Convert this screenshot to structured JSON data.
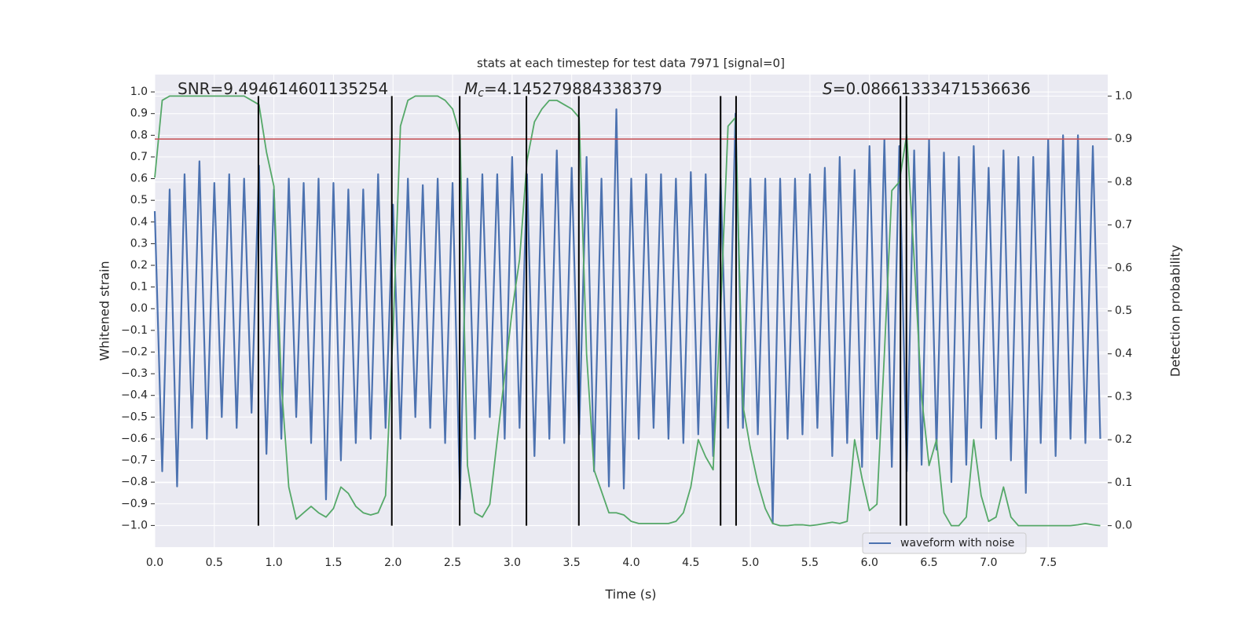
{
  "chart_data": {
    "type": "dual_line",
    "title": "stats at each timestep for test data 7971 [signal=0]",
    "xlabel": "Time (s)",
    "ylabel": "Whitened strain",
    "y2label": "Detection probability",
    "annotations": [
      {
        "text": "SNR=9.494614601135254"
      },
      {
        "symbol": "M",
        "subscript": "c",
        "text": "=4.145279884338379"
      },
      {
        "symbol": "S",
        "text": "=0.08661333471536636"
      }
    ],
    "xlim": [
      0,
      8.0
    ],
    "ylim": [
      -1.1,
      1.08
    ],
    "y2lim": [
      -0.05,
      1.05
    ],
    "xticks": [
      {
        "value": 0,
        "label": "0.0"
      },
      {
        "value": 0.5,
        "label": "0.5"
      },
      {
        "value": 1,
        "label": "1.0"
      },
      {
        "value": 1.5,
        "label": "1.5"
      },
      {
        "value": 2,
        "label": "2.0"
      },
      {
        "value": 2.5,
        "label": "2.5"
      },
      {
        "value": 3,
        "label": "3.0"
      },
      {
        "value": 3.5,
        "label": "3.5"
      },
      {
        "value": 4,
        "label": "4.0"
      },
      {
        "value": 4.5,
        "label": "4.5"
      },
      {
        "value": 5,
        "label": "5.0"
      },
      {
        "value": 5.5,
        "label": "5.5"
      },
      {
        "value": 6,
        "label": "6.0"
      },
      {
        "value": 6.5,
        "label": "6.5"
      },
      {
        "value": 7,
        "label": "7.0"
      },
      {
        "value": 7.5,
        "label": "7.5"
      }
    ],
    "yticks": [
      {
        "value": -1,
        "label": "−1.0"
      },
      {
        "value": -0.9,
        "label": "−0.9"
      },
      {
        "value": -0.8,
        "label": "−0.8"
      },
      {
        "value": -0.7,
        "label": "−0.7"
      },
      {
        "value": -0.6,
        "label": "−0.6"
      },
      {
        "value": -0.5,
        "label": "−0.5"
      },
      {
        "value": -0.4,
        "label": "−0.4"
      },
      {
        "value": -0.3,
        "label": "−0.3"
      },
      {
        "value": -0.2,
        "label": "−0.2"
      },
      {
        "value": -0.1,
        "label": "−0.1"
      },
      {
        "value": 0,
        "label": "0.0"
      },
      {
        "value": 0.1,
        "label": "0.1"
      },
      {
        "value": 0.2,
        "label": "0.2"
      },
      {
        "value": 0.3,
        "label": "0.3"
      },
      {
        "value": 0.4,
        "label": "0.4"
      },
      {
        "value": 0.5,
        "label": "0.5"
      },
      {
        "value": 0.6,
        "label": "0.6"
      },
      {
        "value": 0.7,
        "label": "0.7"
      },
      {
        "value": 0.8,
        "label": "0.8"
      },
      {
        "value": 0.9,
        "label": "0.9"
      },
      {
        "value": 1,
        "label": "1.0"
      }
    ],
    "y2ticks": [
      {
        "value": 0,
        "label": "0.0"
      },
      {
        "value": 0.1,
        "label": "0.1"
      },
      {
        "value": 0.2,
        "label": "0.2"
      },
      {
        "value": 0.3,
        "label": "0.3"
      },
      {
        "value": 0.4,
        "label": "0.4"
      },
      {
        "value": 0.5,
        "label": "0.5"
      },
      {
        "value": 0.6,
        "label": "0.6"
      },
      {
        "value": 0.7,
        "label": "0.7"
      },
      {
        "value": 0.8,
        "label": "0.8"
      },
      {
        "value": 0.9,
        "label": "0.9"
      },
      {
        "value": 1,
        "label": "1.0"
      }
    ],
    "grid": true,
    "legend": "lower right",
    "threshold": {
      "value": 0.9,
      "axis": "y2",
      "color": "#c44e52"
    },
    "vlines": {
      "color": "#000000",
      "values": [
        0.87,
        1.99,
        2.56,
        3.12,
        3.56,
        4.75,
        4.88,
        6.26,
        6.31
      ]
    },
    "x": [
      0,
      0.0625,
      0.125,
      0.1875,
      0.25,
      0.3125,
      0.375,
      0.4375,
      0.5,
      0.5625,
      0.625,
      0.6875,
      0.75,
      0.8125,
      0.875,
      0.9375,
      1,
      1.0625,
      1.125,
      1.1875,
      1.25,
      1.3125,
      1.375,
      1.4375,
      1.5,
      1.5625,
      1.625,
      1.6875,
      1.75,
      1.8125,
      1.875,
      1.9375,
      2,
      2.0625,
      2.125,
      2.1875,
      2.25,
      2.3125,
      2.375,
      2.4375,
      2.5,
      2.5625,
      2.625,
      2.6875,
      2.75,
      2.8125,
      2.875,
      2.9375,
      3,
      3.0625,
      3.125,
      3.1875,
      3.25,
      3.3125,
      3.375,
      3.4375,
      3.5,
      3.5625,
      3.625,
      3.6875,
      3.75,
      3.8125,
      3.875,
      3.9375,
      4,
      4.0625,
      4.125,
      4.1875,
      4.25,
      4.3125,
      4.375,
      4.4375,
      4.5,
      4.5625,
      4.625,
      4.6875,
      4.75,
      4.8125,
      4.875,
      4.9375,
      5,
      5.0625,
      5.125,
      5.1875,
      5.25,
      5.3125,
      5.375,
      5.4375,
      5.5,
      5.5625,
      5.625,
      5.6875,
      5.75,
      5.8125,
      5.875,
      5.9375,
      6,
      6.0625,
      6.125,
      6.1875,
      6.25,
      6.3125,
      6.375,
      6.4375,
      6.5,
      6.5625,
      6.625,
      6.6875,
      6.75,
      6.8125,
      6.875,
      6.9375,
      7,
      7.0625,
      7.125,
      7.1875,
      7.25,
      7.3125,
      7.375,
      7.4375,
      7.5,
      7.5625,
      7.625,
      7.6875,
      7.75,
      7.8125,
      7.875,
      7.9375
    ],
    "series": [
      {
        "name": "waveform with noise",
        "color": "#4c72b0",
        "axis": "y",
        "values": [
          0.45,
          -0.75,
          0.55,
          -0.82,
          0.62,
          -0.55,
          0.68,
          -0.6,
          0.58,
          -0.5,
          0.62,
          -0.55,
          0.6,
          -0.48,
          0.66,
          -0.67,
          0.55,
          -0.6,
          0.6,
          -0.5,
          0.58,
          -0.62,
          0.6,
          -0.88,
          0.58,
          -0.7,
          0.55,
          -0.62,
          0.55,
          -0.6,
          0.62,
          -0.55,
          0.48,
          -0.6,
          0.6,
          -0.5,
          0.57,
          -0.55,
          0.6,
          -0.62,
          0.58,
          -0.88,
          0.6,
          -0.6,
          0.62,
          -0.5,
          0.62,
          -0.6,
          0.7,
          -0.55,
          0.62,
          -0.68,
          0.62,
          -0.6,
          0.73,
          -0.62,
          0.65,
          -0.58,
          0.7,
          -0.75,
          0.6,
          -0.82,
          0.92,
          -0.83,
          0.6,
          -0.6,
          0.62,
          -0.55,
          0.62,
          -0.6,
          0.6,
          -0.62,
          0.63,
          -0.58,
          0.62,
          -0.68,
          0.6,
          -0.55,
          0.9,
          -0.55,
          0.6,
          -0.58,
          0.6,
          -0.99,
          0.6,
          -0.6,
          0.6,
          -0.58,
          0.62,
          -0.55,
          0.65,
          -0.68,
          0.7,
          -0.62,
          0.64,
          -0.73,
          0.75,
          -0.6,
          0.78,
          -0.73,
          0.75,
          -0.75,
          0.73,
          -0.72,
          0.78,
          -0.65,
          0.72,
          -0.8,
          0.7,
          -0.72,
          0.75,
          -0.55,
          0.65,
          -0.6,
          0.73,
          -0.7,
          0.7,
          -0.85,
          0.7,
          -0.62,
          0.78,
          -0.68,
          0.8,
          -0.6,
          0.8,
          -0.62,
          0.75,
          -0.6
        ]
      },
      {
        "color": "#55a868",
        "axis": "y2",
        "values": [
          0.81,
          0.99,
          1.0,
          1.0,
          1.0,
          1.0,
          1.0,
          1.0,
          1.0,
          1.0,
          1.0,
          1.0,
          1.0,
          0.99,
          0.98,
          0.87,
          0.79,
          0.33,
          0.09,
          0.015,
          0.03,
          0.045,
          0.03,
          0.02,
          0.04,
          0.09,
          0.075,
          0.045,
          0.03,
          0.025,
          0.03,
          0.07,
          0.45,
          0.93,
          0.99,
          1.0,
          1.0,
          1.0,
          1.0,
          0.99,
          0.97,
          0.91,
          0.14,
          0.03,
          0.02,
          0.05,
          0.2,
          0.35,
          0.5,
          0.62,
          0.85,
          0.94,
          0.97,
          0.99,
          0.99,
          0.98,
          0.97,
          0.95,
          0.4,
          0.13,
          0.08,
          0.03,
          0.03,
          0.025,
          0.01,
          0.005,
          0.005,
          0.005,
          0.005,
          0.005,
          0.01,
          0.03,
          0.09,
          0.2,
          0.16,
          0.13,
          0.5,
          0.93,
          0.95,
          0.28,
          0.18,
          0.1,
          0.04,
          0.005,
          0.0,
          0.0,
          0.002,
          0.002,
          0.0,
          0.002,
          0.005,
          0.008,
          0.005,
          0.01,
          0.2,
          0.11,
          0.035,
          0.05,
          0.4,
          0.78,
          0.8,
          0.91,
          0.62,
          0.3,
          0.14,
          0.2,
          0.03,
          0.0,
          0.0,
          0.02,
          0.2,
          0.07,
          0.01,
          0.02,
          0.09,
          0.02,
          0.0,
          0.0,
          0.0,
          0.0,
          0.0,
          0.0,
          0.0,
          0.0,
          0.002,
          0.005,
          0.002,
          0.0
        ]
      }
    ]
  }
}
